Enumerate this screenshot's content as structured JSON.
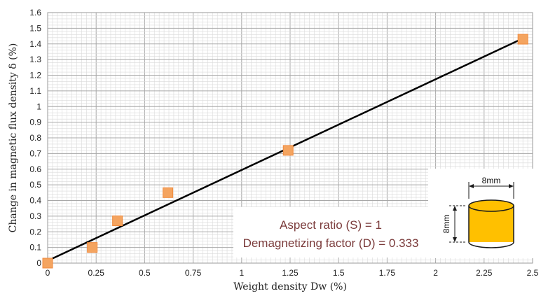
{
  "chart_data": {
    "type": "scatter",
    "xlabel": "Weight density Dw (%)",
    "ylabel": "Change in magnetic flux density δ (%)",
    "xlim": [
      0,
      2.5
    ],
    "ylim": [
      0,
      1.6
    ],
    "x_ticks": [
      "0",
      "0.25",
      "0.5",
      "0.75",
      "1",
      "1.25",
      "1.5",
      "1.75",
      "2",
      "2.25",
      "2.5"
    ],
    "y_ticks": [
      "0",
      "0.1",
      "0.2",
      "0.3",
      "0.4",
      "0.5",
      "0.6",
      "0.7",
      "0.8",
      "0.9",
      "1",
      "1.1",
      "1.2",
      "1.3",
      "1.4",
      "1.5",
      "1.6"
    ],
    "grid": true,
    "points": [
      {
        "x": 0,
        "y": 0
      },
      {
        "x": 0.23,
        "y": 0.1
      },
      {
        "x": 0.36,
        "y": 0.27
      },
      {
        "x": 0.62,
        "y": 0.45
      },
      {
        "x": 1.24,
        "y": 0.72
      },
      {
        "x": 2.45,
        "y": 1.43
      }
    ],
    "trendline": {
      "x": [
        0,
        2.45
      ],
      "y": [
        0.015,
        1.435
      ]
    },
    "annotations": [
      "Aspect ratio (S) = 1",
      "Demagnetizing factor (D) = 0.333"
    ],
    "inset": {
      "width_label": "8mm",
      "height_label": "8mm"
    },
    "colors": {
      "marker": "#f4a460",
      "marker_edge": "#f08a3c",
      "line": "#000000",
      "cylinder": "#ffc000"
    }
  }
}
